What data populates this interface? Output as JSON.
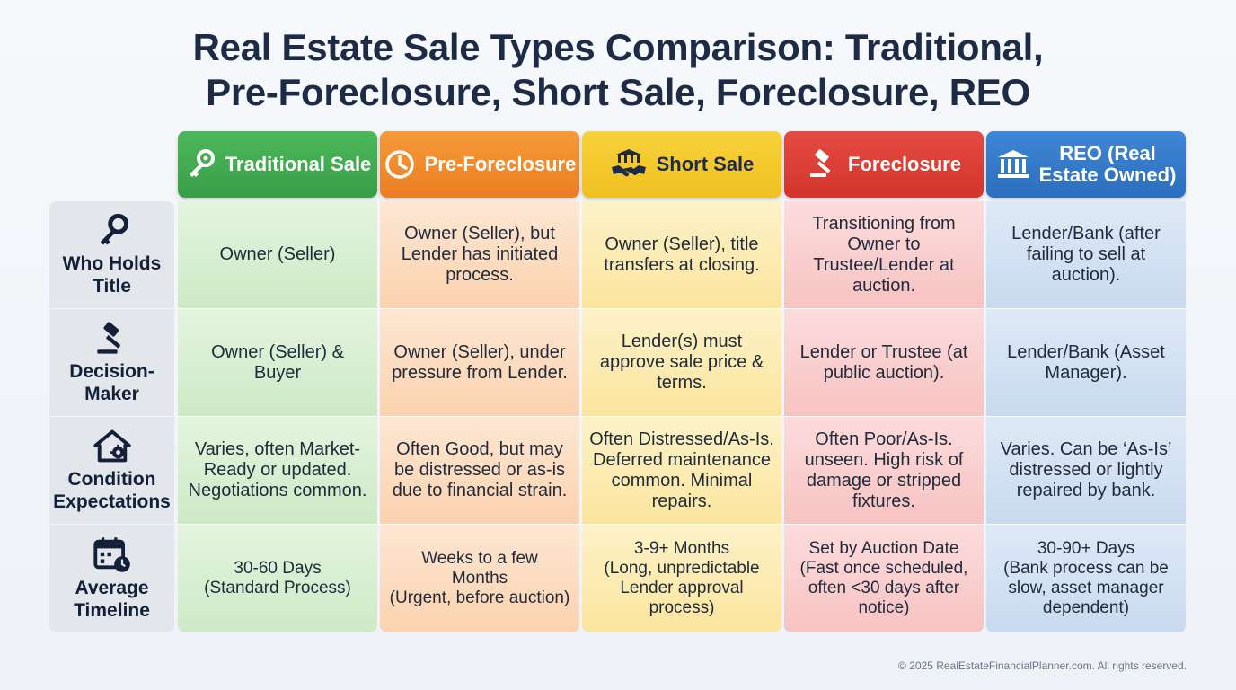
{
  "title": {
    "line1": "Real Estate Sale Types Comparison: Traditional,",
    "line2": "Pre-Foreclosure, Short Sale, Foreclosure, REO"
  },
  "columns": [
    {
      "label": "Traditional Sale",
      "icon": "key-icon",
      "color": "#3fa84d"
    },
    {
      "label": "Pre-Foreclosure",
      "icon": "clock-icon",
      "color": "#ef8a2c"
    },
    {
      "label": "Short Sale",
      "icon": "handshake-icon",
      "color": "#f3c82c"
    },
    {
      "label": "Foreclosure",
      "icon": "gavel-icon",
      "color": "#da3c34"
    },
    {
      "label": "REO (Real\nEstate Owned)",
      "icon": "bank-icon",
      "color": "#3279c9"
    }
  ],
  "rows": [
    {
      "label": "Who Holds\nTitle",
      "icon": "key-icon",
      "cells": [
        "Owner (Seller)",
        "Owner (Seller), but\nLender has initiated\nprocess.",
        "Owner (Seller), title\ntransfers at closing.",
        "Transitioning from\nOwner to\nTrustee/Lender at\nauction.",
        "Lender/Bank (after\nfailing to sell at\nauction)."
      ]
    },
    {
      "label": "Decision-\nMaker",
      "icon": "gavel-icon",
      "cells": [
        "Owner (Seller) &\nBuyer",
        "Owner (Seller), under\npressure from Lender.",
        "Lender(s) must\napprove sale price &\nterms.",
        "Lender or Trustee (at\npublic auction).",
        "Lender/Bank (Asset\nManager)."
      ]
    },
    {
      "label": "Condition\nExpectations",
      "icon": "house-gear-icon",
      "cells": [
        "Varies, often Market-\nReady or updated.\nNegotiations common.",
        "Often Good, but may\nbe distressed or as-is\ndue to financial strain.",
        "Often Distressed/As-Is.\nDeferred maintenance\ncommon. Minimal\nrepairs.",
        "Often Poor/As-Is.\nunseen. High risk of\ndamage or stripped\nfixtures.",
        "Varies. Can be ‘As-Is’\ndistressed or lightly\nrepaired by bank."
      ]
    },
    {
      "label": "Average\nTimeline",
      "icon": "calendar-clock-icon",
      "cells": [
        "30-60 Days\n(Standard Process)",
        "Weeks to a few\nMonths\n(Urgent, before auction)",
        "3-9+ Months\n(Long, unpredictable\nLender approval\nprocess)",
        "Set by Auction Date\n(Fast once scheduled,\noften <30 days after\nnotice)",
        "30-90+ Days\n(Bank process can be\nslow, asset manager\ndependent)"
      ]
    }
  ],
  "footer": "© 2025 RealEstateFinancialPlanner.com. All rights reserved."
}
